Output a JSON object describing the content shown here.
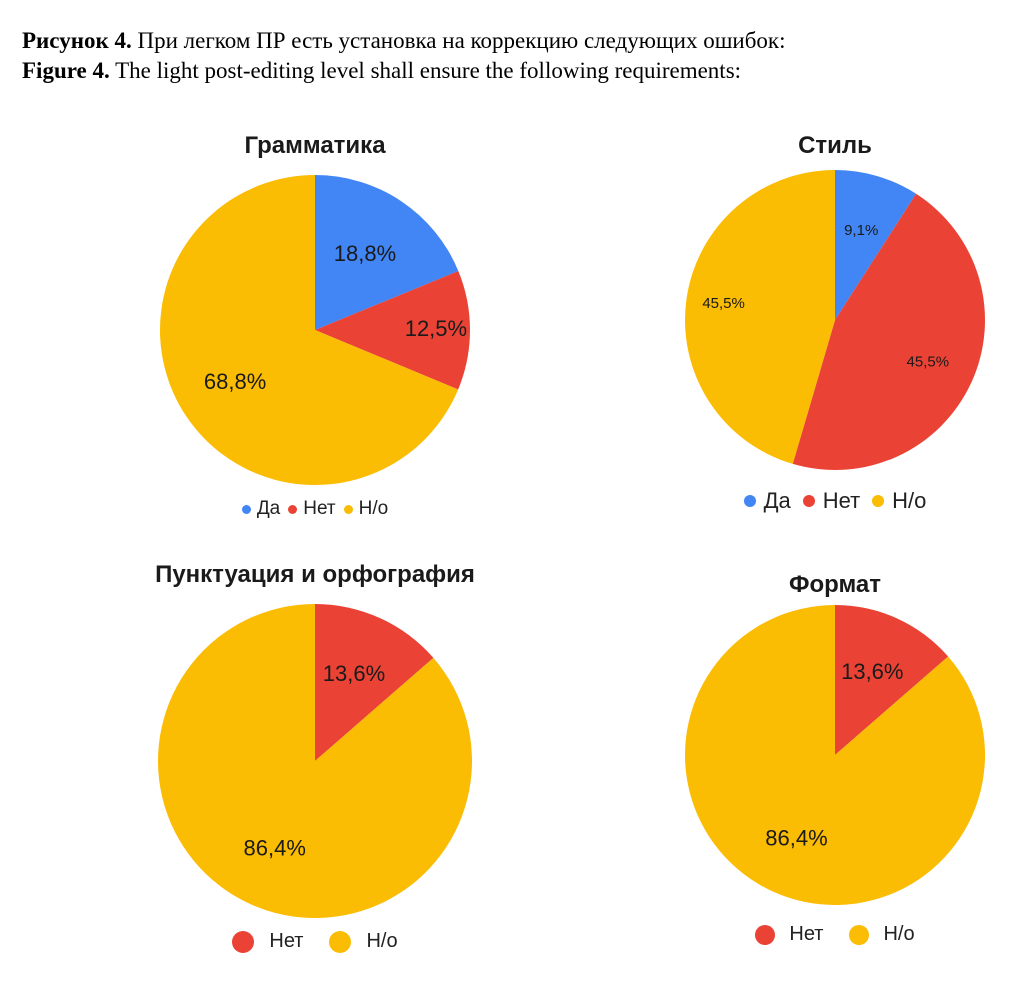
{
  "caption": {
    "ru_bold": "Рисунок 4.",
    "ru_text": " При легком ПР есть установка на коррекцию следующих ошибок:",
    "en_bold": "Figure 4.",
    "en_text": " The light post-editing level shall ensure the following requirements:"
  },
  "colors": {
    "Да": "#4285F4",
    "Нет": "#EA4335",
    "Н/о": "#FBBC04"
  },
  "chart_data": [
    {
      "type": "pie",
      "title": "Грамматика",
      "labels": [
        "Да",
        "Нет",
        "Н/о"
      ],
      "values": [
        18.8,
        12.5,
        68.8
      ],
      "value_labels": [
        "18,8%",
        "12,5%",
        "68,8%"
      ],
      "legend": {
        "position": "bottom",
        "items": [
          "Да",
          "Нет",
          "Н/о"
        ]
      }
    },
    {
      "type": "pie",
      "title": "Стиль",
      "labels": [
        "Да",
        "Нет",
        "Н/о"
      ],
      "values": [
        9.1,
        45.5,
        45.5
      ],
      "value_labels": [
        "9,1%",
        "45,5%",
        "45,5%"
      ],
      "legend": {
        "position": "bottom",
        "items": [
          "Да",
          "Нет",
          "Н/о"
        ]
      }
    },
    {
      "type": "pie",
      "title": "Пунктуация и орфография",
      "labels": [
        "Нет",
        "Н/о"
      ],
      "values": [
        13.6,
        86.4
      ],
      "value_labels": [
        "13,6%",
        "86,4%"
      ],
      "legend": {
        "position": "bottom",
        "items": [
          "Нет",
          "Н/о"
        ]
      }
    },
    {
      "type": "pie",
      "title": "Формат",
      "labels": [
        "Нет",
        "Н/о"
      ],
      "values": [
        13.6,
        86.4
      ],
      "value_labels": [
        "13,6%",
        "86,4%"
      ],
      "legend": {
        "position": "bottom",
        "items": [
          "Нет",
          "Н/о"
        ]
      }
    }
  ]
}
